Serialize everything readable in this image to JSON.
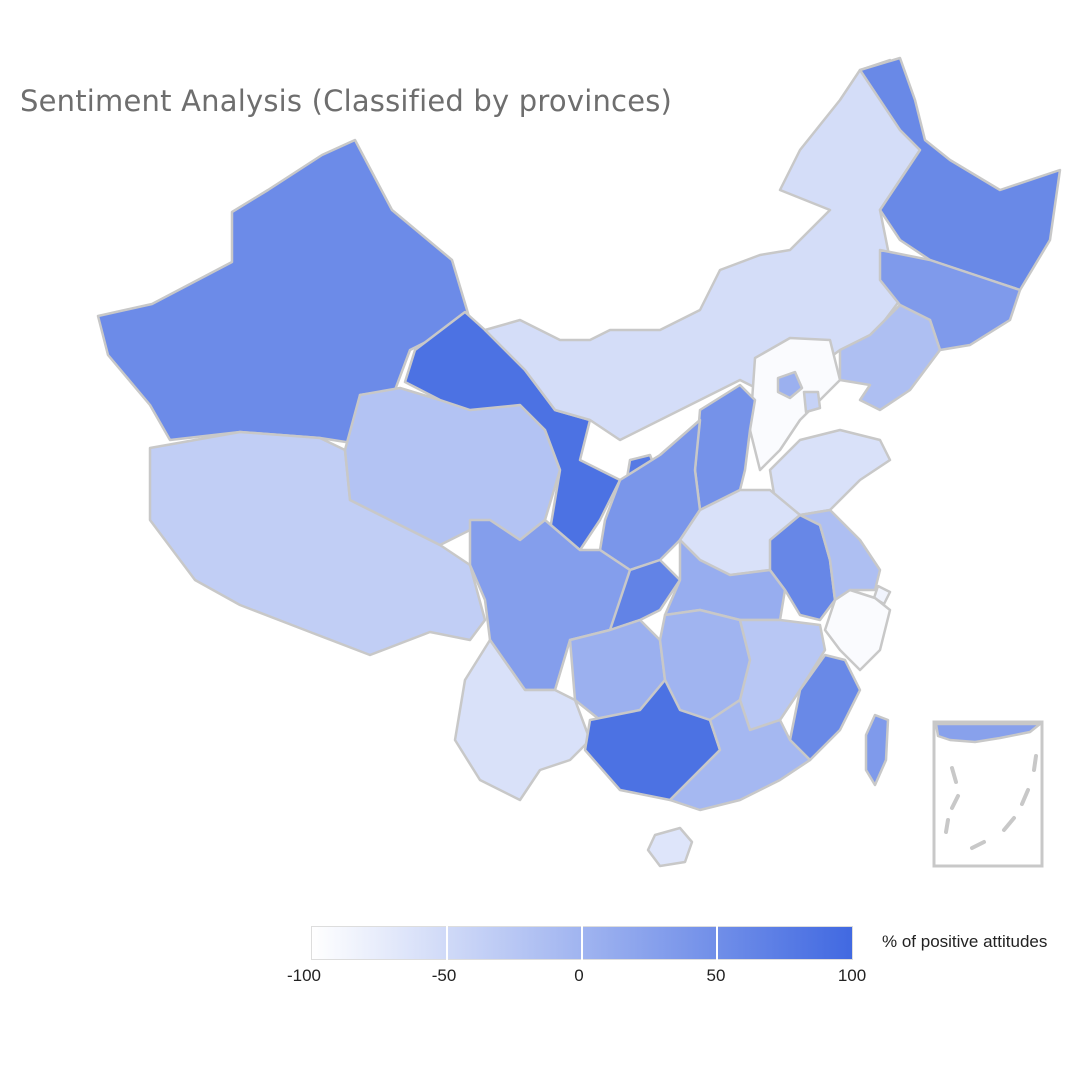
{
  "title": "Sentiment Analysis (Classified by provinces)",
  "legend": {
    "title": "% of positive attitudes",
    "min": -100,
    "max": 100,
    "ticks": [
      "-100",
      "-50",
      "0",
      "50",
      "100"
    ],
    "color_low": "#ffffff",
    "color_high": "#4169e1"
  },
  "colors": {
    "border": "#c8c8c8",
    "inset_frame": "#c8c8c8"
  },
  "regions": [
    {
      "name": "Xinjiang",
      "value": 55
    },
    {
      "name": "Tibet",
      "value": -35
    },
    {
      "name": "Qinghai",
      "value": -20
    },
    {
      "name": "Gansu",
      "value": 88
    },
    {
      "name": "Inner Mongolia",
      "value": -55
    },
    {
      "name": "Heilongjiang",
      "value": 58
    },
    {
      "name": "Jilin",
      "value": 35
    },
    {
      "name": "Liaoning",
      "value": -15
    },
    {
      "name": "Beijing",
      "value": 5
    },
    {
      "name": "Tianjin",
      "value": -40
    },
    {
      "name": "Hebei",
      "value": -95
    },
    {
      "name": "Shandong",
      "value": -60
    },
    {
      "name": "Shanxi",
      "value": 45
    },
    {
      "name": "Ningxia",
      "value": 78
    },
    {
      "name": "Shaanxi",
      "value": 40
    },
    {
      "name": "Henan",
      "value": -60
    },
    {
      "name": "Sichuan",
      "value": 30
    },
    {
      "name": "Chongqing",
      "value": 65
    },
    {
      "name": "Hubei",
      "value": 10
    },
    {
      "name": "Anhui",
      "value": 60
    },
    {
      "name": "Jiangsu",
      "value": -15
    },
    {
      "name": "Shanghai",
      "value": -85
    },
    {
      "name": "Zhejiang",
      "value": -95
    },
    {
      "name": "Guizhou",
      "value": 5
    },
    {
      "name": "Hunan",
      "value": 0
    },
    {
      "name": "Jiangxi",
      "value": -25
    },
    {
      "name": "Fujian",
      "value": 58
    },
    {
      "name": "Yunnan",
      "value": -60
    },
    {
      "name": "Guangxi",
      "value": 88
    },
    {
      "name": "Guangdong",
      "value": -5
    },
    {
      "name": "Hainan",
      "value": -65
    },
    {
      "name": "Taiwan",
      "value": 35
    },
    {
      "name": "South China Sea islands",
      "value": 25
    }
  ]
}
